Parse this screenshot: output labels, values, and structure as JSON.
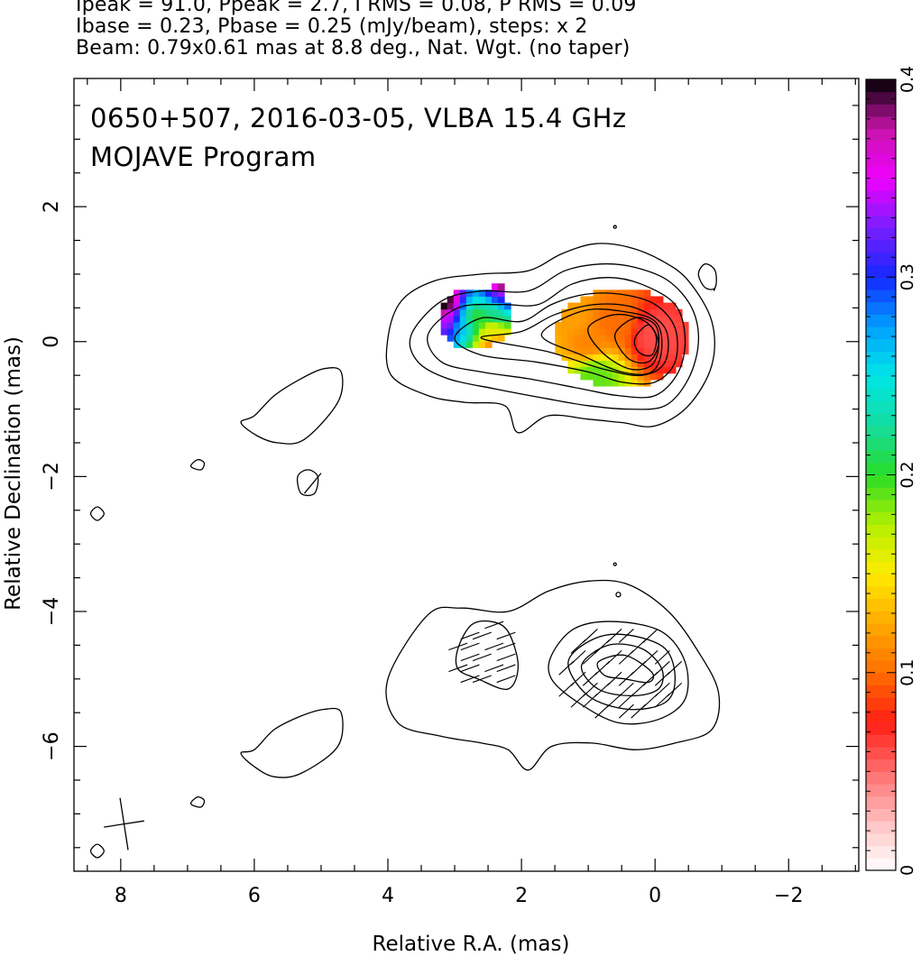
{
  "header": {
    "line1": "Ipeak = 91.0, Ppeak = 2.7, I RMS = 0.08, P RMS = 0.09",
    "line2": "Ibase = 0.23, Pbase = 0.25 (mJy/beam), steps: x 2",
    "line3": "Beam: 0.79x0.61 mas at 8.8 deg., Nat. Wgt. (no taper)"
  },
  "chart_data": {
    "type": "heatmap",
    "title": "0650+507, 2016-03-05, VLBA 15.4 GHz",
    "subtitle": "MOJAVE Program",
    "xlabel": "Relative R.A. (mas)",
    "ylabel": "Relative Declination (mas)",
    "xlim": [
      8.7,
      -3.05
    ],
    "ylim": [
      -7.85,
      3.9
    ],
    "xticks": [
      8,
      6,
      4,
      2,
      0,
      -2
    ],
    "xtick_labels": [
      "8",
      "6",
      "4",
      "2",
      "0",
      "−2"
    ],
    "yticks": [
      2,
      0,
      -2,
      -4,
      -6
    ],
    "ytick_labels": [
      "2",
      "0",
      "−2",
      "−4",
      "−6"
    ],
    "colorbar": {
      "range": [
        0,
        0.4
      ],
      "ticks": [
        0,
        0.1,
        0.2,
        0.3,
        0.4
      ],
      "tick_labels": [
        "0",
        "0.1",
        "0.2",
        "0.3",
        "0.4"
      ]
    },
    "beam": {
      "major_mas": 0.79,
      "minor_mas": 0.61,
      "pa_deg": 8.8,
      "center": [
        7.95,
        -7.15
      ]
    },
    "core_position": [
      0.0,
      0.0
    ],
    "fractional_polarization_map": [
      {
        "ra": 3.15,
        "dec": 0.55,
        "value": 0.4
      },
      {
        "ra": 3.05,
        "dec": 0.35,
        "value": 0.34
      },
      {
        "ra": 2.9,
        "dec": 0.3,
        "value": 0.26
      },
      {
        "ra": 2.7,
        "dec": 0.35,
        "value": 0.2
      },
      {
        "ra": 2.4,
        "dec": 0.45,
        "value": 0.22
      },
      {
        "ra": 2.3,
        "dec": 0.65,
        "value": 0.3
      },
      {
        "ra": 2.25,
        "dec": 0.8,
        "value": 0.39
      },
      {
        "ra": 2.45,
        "dec": 0.15,
        "value": 0.16
      },
      {
        "ra": 2.4,
        "dec": -0.05,
        "value": 0.11
      },
      {
        "ra": 1.3,
        "dec": 0.35,
        "value": 0.12
      },
      {
        "ra": 1.0,
        "dec": 0.0,
        "value": 0.11
      },
      {
        "ra": 0.9,
        "dec": -0.5,
        "value": 0.19
      },
      {
        "ra": 0.6,
        "dec": 0.3,
        "value": 0.1
      },
      {
        "ra": 0.0,
        "dec": 0.1,
        "value": 0.06
      }
    ],
    "contours_top": [
      [
        [
          4.0,
          0.05
        ],
        [
          3.8,
          0.6
        ],
        [
          3.3,
          0.9
        ],
        [
          2.6,
          1.0
        ],
        [
          1.9,
          1.05
        ],
        [
          1.4,
          1.3
        ],
        [
          0.9,
          1.45
        ],
        [
          0.4,
          1.4
        ],
        [
          -0.1,
          1.2
        ],
        [
          -0.5,
          0.9
        ],
        [
          -0.85,
          0.3
        ],
        [
          -0.85,
          -0.35
        ],
        [
          -0.5,
          -0.95
        ],
        [
          0.0,
          -1.25
        ],
        [
          0.5,
          -1.2
        ],
        [
          1.0,
          -1.15
        ],
        [
          1.6,
          -1.1
        ],
        [
          2.05,
          -1.35
        ],
        [
          2.25,
          -0.95
        ],
        [
          2.85,
          -0.9
        ],
        [
          3.4,
          -0.8
        ],
        [
          3.95,
          -0.5
        ]
      ],
      [
        [
          3.65,
          0.1
        ],
        [
          3.2,
          0.6
        ],
        [
          2.6,
          0.75
        ],
        [
          1.9,
          0.75
        ],
        [
          1.35,
          1.05
        ],
        [
          0.8,
          1.15
        ],
        [
          0.3,
          1.1
        ],
        [
          -0.2,
          0.9
        ],
        [
          -0.55,
          0.5
        ],
        [
          -0.65,
          0.0
        ],
        [
          -0.5,
          -0.55
        ],
        [
          -0.15,
          -0.95
        ],
        [
          0.4,
          -1.0
        ],
        [
          1.0,
          -0.95
        ],
        [
          1.6,
          -0.85
        ],
        [
          2.4,
          -0.7
        ],
        [
          3.1,
          -0.55
        ],
        [
          3.55,
          -0.3
        ]
      ],
      [
        [
          3.4,
          0.1
        ],
        [
          2.95,
          0.5
        ],
        [
          2.3,
          0.55
        ],
        [
          1.75,
          0.55
        ],
        [
          1.25,
          0.85
        ],
        [
          0.7,
          0.95
        ],
        [
          0.2,
          0.85
        ],
        [
          -0.3,
          0.55
        ],
        [
          -0.45,
          0.05
        ],
        [
          -0.35,
          -0.45
        ],
        [
          0.0,
          -0.8
        ],
        [
          0.55,
          -0.8
        ],
        [
          1.1,
          -0.7
        ],
        [
          1.9,
          -0.55
        ],
        [
          2.6,
          -0.45
        ],
        [
          3.2,
          -0.3
        ]
      ],
      [
        [
          3.0,
          0.05
        ],
        [
          2.6,
          0.35
        ],
        [
          2.0,
          0.3
        ],
        [
          1.55,
          0.55
        ],
        [
          1.05,
          0.7
        ],
        [
          0.5,
          0.7
        ],
        [
          0.0,
          0.55
        ],
        [
          -0.3,
          0.2
        ],
        [
          -0.3,
          -0.3
        ],
        [
          0.0,
          -0.6
        ],
        [
          0.5,
          -0.6
        ],
        [
          1.0,
          -0.45
        ],
        [
          1.8,
          -0.3
        ],
        [
          2.6,
          -0.2
        ]
      ],
      [
        [
          2.6,
          0.05
        ],
        [
          2.0,
          0.15
        ],
        [
          1.5,
          0.4
        ],
        [
          0.9,
          0.55
        ],
        [
          0.3,
          0.5
        ],
        [
          -0.15,
          0.2
        ],
        [
          -0.15,
          -0.3
        ],
        [
          0.2,
          -0.5
        ],
        [
          0.8,
          -0.4
        ],
        [
          1.6,
          -0.15
        ]
      ],
      [
        [
          1.7,
          0.1
        ],
        [
          1.1,
          0.45
        ],
        [
          0.5,
          0.45
        ],
        [
          0.0,
          0.3
        ],
        [
          -0.1,
          -0.1
        ],
        [
          0.05,
          -0.45
        ],
        [
          0.5,
          -0.45
        ],
        [
          1.1,
          -0.2
        ]
      ],
      [
        [
          1.0,
          0.2
        ],
        [
          0.6,
          0.4
        ],
        [
          0.15,
          0.3
        ],
        [
          -0.05,
          0.0
        ],
        [
          0.05,
          -0.35
        ],
        [
          0.4,
          -0.4
        ],
        [
          0.8,
          -0.15
        ]
      ],
      [
        [
          0.6,
          0.1
        ],
        [
          0.3,
          0.35
        ],
        [
          0.0,
          0.25
        ],
        [
          -0.05,
          -0.05
        ],
        [
          0.1,
          -0.3
        ],
        [
          0.4,
          -0.25
        ]
      ],
      [
        [
          0.3,
          0.05
        ],
        [
          0.1,
          0.25
        ],
        [
          -0.02,
          0.05
        ],
        [
          0.05,
          -0.2
        ],
        [
          0.25,
          -0.15
        ]
      ]
    ],
    "contours_islands": [
      [
        [
          6.0,
          -1.1
        ],
        [
          5.7,
          -0.8
        ],
        [
          5.3,
          -0.55
        ],
        [
          4.95,
          -0.4
        ],
        [
          4.7,
          -0.45
        ],
        [
          4.75,
          -0.9
        ],
        [
          5.25,
          -1.45
        ],
        [
          5.65,
          -1.5
        ],
        [
          5.95,
          -1.4
        ],
        [
          6.2,
          -1.2
        ]
      ],
      [
        [
          5.35,
          -2.0
        ],
        [
          5.2,
          -1.9
        ],
        [
          5.05,
          -2.0
        ],
        [
          5.1,
          -2.25
        ],
        [
          5.3,
          -2.25
        ]
      ],
      [
        [
          6.85,
          -1.75
        ],
        [
          6.75,
          -1.8
        ],
        [
          6.8,
          -1.9
        ],
        [
          6.95,
          -1.85
        ]
      ],
      [
        [
          8.35,
          -2.45
        ],
        [
          8.25,
          -2.55
        ],
        [
          8.35,
          -2.65
        ],
        [
          8.45,
          -2.55
        ]
      ],
      [
        [
          -0.75,
          1.15
        ],
        [
          -0.9,
          1.05
        ],
        [
          -0.9,
          0.8
        ],
        [
          -0.75,
          0.8
        ],
        [
          -0.65,
          1.0
        ]
      ],
      [
        [
          6.0,
          -6.05
        ],
        [
          5.7,
          -5.75
        ],
        [
          5.3,
          -5.55
        ],
        [
          4.95,
          -5.45
        ],
        [
          4.7,
          -5.5
        ],
        [
          4.75,
          -6.0
        ],
        [
          5.3,
          -6.4
        ],
        [
          5.7,
          -6.45
        ],
        [
          6.0,
          -6.3
        ],
        [
          6.2,
          -6.1
        ]
      ],
      [
        [
          6.85,
          -6.75
        ],
        [
          6.75,
          -6.8
        ],
        [
          6.8,
          -6.9
        ],
        [
          6.95,
          -6.85
        ]
      ],
      [
        [
          8.35,
          -7.45
        ],
        [
          8.25,
          -7.55
        ],
        [
          8.35,
          -7.65
        ],
        [
          8.45,
          -7.55
        ]
      ]
    ],
    "contours_bottom": [
      [
        [
          3.4,
          -4.05
        ],
        [
          2.9,
          -3.95
        ],
        [
          2.2,
          -4.0
        ],
        [
          1.6,
          -3.7
        ],
        [
          1.0,
          -3.55
        ],
        [
          0.4,
          -3.6
        ],
        [
          -0.2,
          -4.0
        ],
        [
          -0.65,
          -4.6
        ],
        [
          -0.95,
          -5.2
        ],
        [
          -0.85,
          -5.75
        ],
        [
          -0.3,
          -5.95
        ],
        [
          0.3,
          -6.05
        ],
        [
          0.95,
          -5.95
        ],
        [
          1.55,
          -6.0
        ],
        [
          1.9,
          -6.35
        ],
        [
          2.2,
          -6.05
        ],
        [
          2.6,
          -5.95
        ],
        [
          3.2,
          -5.85
        ],
        [
          3.85,
          -5.65
        ],
        [
          4.0,
          -5.0
        ]
      ],
      [
        [
          2.95,
          -4.55
        ],
        [
          2.75,
          -4.2
        ],
        [
          2.45,
          -4.15
        ],
        [
          2.2,
          -4.3
        ],
        [
          2.05,
          -4.8
        ],
        [
          2.2,
          -5.15
        ],
        [
          2.65,
          -5.0
        ],
        [
          2.95,
          -4.85
        ]
      ],
      [
        [
          1.55,
          -4.65
        ],
        [
          1.2,
          -4.25
        ],
        [
          0.6,
          -4.15
        ],
        [
          -0.1,
          -4.3
        ],
        [
          -0.45,
          -4.75
        ],
        [
          -0.45,
          -5.3
        ],
        [
          -0.05,
          -5.6
        ],
        [
          0.55,
          -5.65
        ],
        [
          1.15,
          -5.35
        ],
        [
          1.55,
          -5.0
        ]
      ],
      [
        [
          1.3,
          -4.75
        ],
        [
          0.9,
          -4.4
        ],
        [
          0.4,
          -4.35
        ],
        [
          -0.15,
          -4.55
        ],
        [
          -0.3,
          -5.0
        ],
        [
          -0.15,
          -5.35
        ],
        [
          0.4,
          -5.45
        ],
        [
          1.0,
          -5.25
        ]
      ],
      [
        [
          1.1,
          -4.8
        ],
        [
          0.7,
          -4.5
        ],
        [
          0.2,
          -4.55
        ],
        [
          -0.1,
          -4.85
        ],
        [
          -0.05,
          -5.15
        ],
        [
          0.35,
          -5.25
        ],
        [
          0.85,
          -5.15
        ]
      ],
      [
        [
          0.85,
          -4.75
        ],
        [
          0.45,
          -4.65
        ],
        [
          0.05,
          -4.9
        ],
        [
          0.1,
          -5.05
        ],
        [
          0.45,
          -5.0
        ],
        [
          0.75,
          -4.95
        ]
      ]
    ]
  }
}
